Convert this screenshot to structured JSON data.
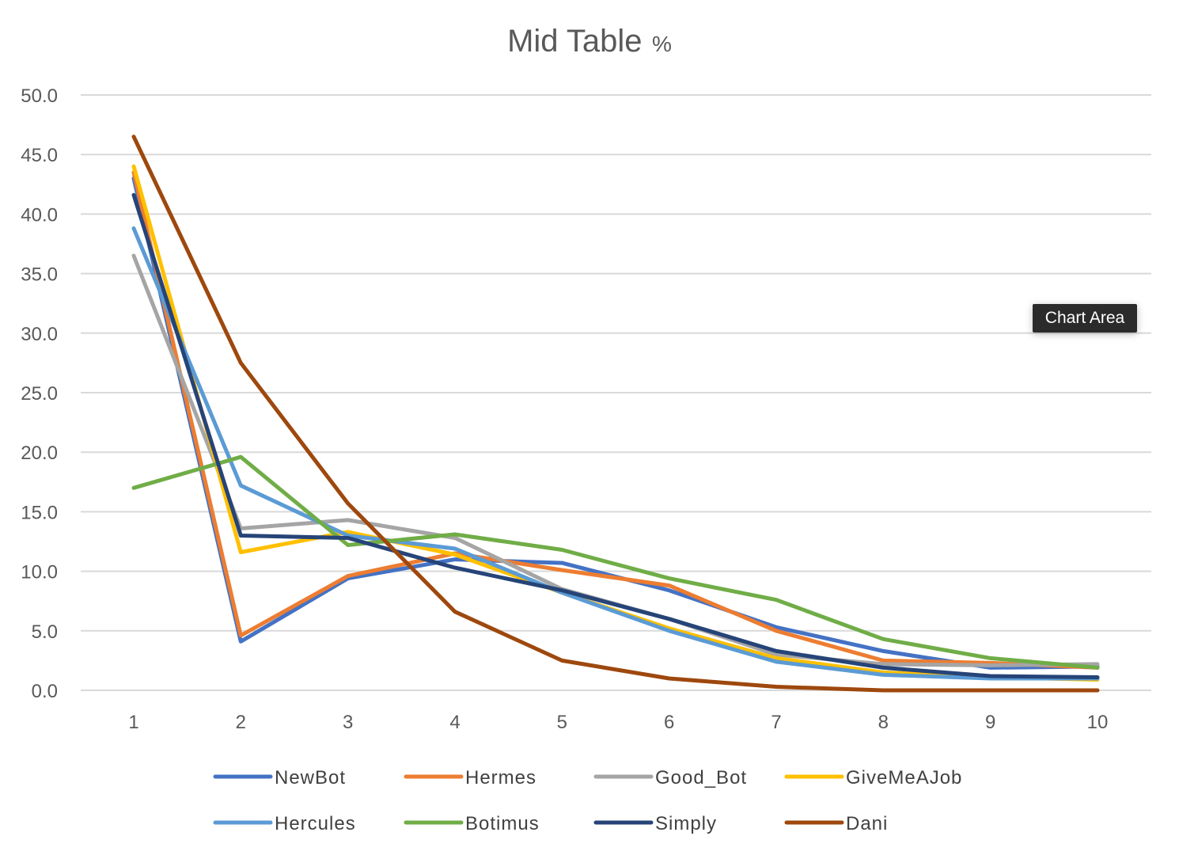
{
  "chart_data": {
    "type": "line",
    "title": "Mid Table",
    "title_suffix": "%",
    "xlabel": "",
    "ylabel": "",
    "categories": [
      "1",
      "2",
      "3",
      "4",
      "5",
      "6",
      "7",
      "8",
      "9",
      "10"
    ],
    "ylim": [
      0,
      50
    ],
    "yticks": [
      "0.0",
      "5.0",
      "10.0",
      "15.0",
      "20.0",
      "25.0",
      "30.0",
      "35.0",
      "40.0",
      "45.0",
      "50.0"
    ],
    "grid": true,
    "legend_position": "bottom",
    "series": [
      {
        "name": "NewBot",
        "color": "#4472C4",
        "values": [
          43.0,
          4.1,
          9.4,
          11.0,
          10.7,
          8.4,
          5.3,
          3.3,
          1.9,
          2.0
        ]
      },
      {
        "name": "Hermes",
        "color": "#ED7D31",
        "values": [
          43.5,
          4.6,
          9.6,
          11.5,
          10.1,
          8.8,
          5.0,
          2.5,
          2.3,
          1.9
        ]
      },
      {
        "name": "Good_Bot",
        "color": "#A5A5A5",
        "values": [
          36.5,
          13.6,
          14.3,
          12.8,
          8.5,
          6.0,
          3.0,
          2.2,
          2.1,
          2.2
        ]
      },
      {
        "name": "GiveMeAJob",
        "color": "#FFC000",
        "values": [
          44.0,
          11.6,
          13.3,
          11.4,
          8.2,
          5.2,
          2.7,
          1.5,
          1.1,
          0.9
        ]
      },
      {
        "name": "Hercules",
        "color": "#5B9BD5",
        "values": [
          38.8,
          17.2,
          13.0,
          11.9,
          8.2,
          5.0,
          2.4,
          1.3,
          1.0,
          1.0
        ]
      },
      {
        "name": "Botimus",
        "color": "#70AD47",
        "values": [
          17.0,
          19.6,
          12.2,
          13.1,
          11.8,
          9.4,
          7.6,
          4.3,
          2.7,
          1.9
        ]
      },
      {
        "name": "Simply",
        "color": "#264478",
        "values": [
          41.6,
          13.0,
          12.8,
          10.3,
          8.4,
          6.0,
          3.3,
          1.9,
          1.2,
          1.1
        ]
      },
      {
        "name": "Dani",
        "color": "#9E480E",
        "values": [
          46.5,
          27.5,
          15.7,
          6.6,
          2.5,
          1.0,
          0.3,
          0.0,
          0.0,
          0.0
        ]
      }
    ]
  },
  "tooltip": "Chart Area"
}
